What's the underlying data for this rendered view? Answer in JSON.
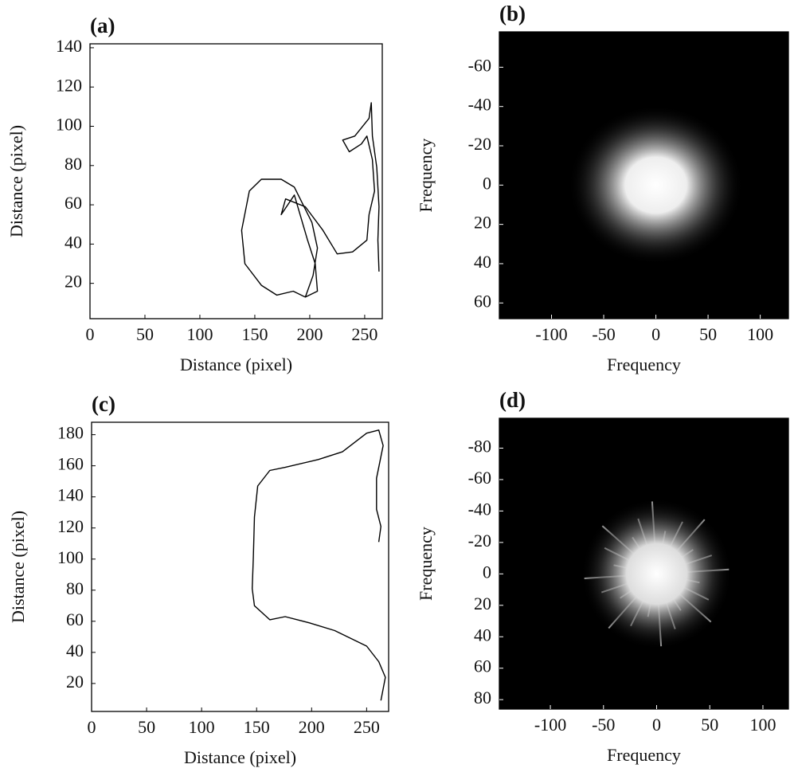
{
  "chart_data": [
    {
      "type": "line",
      "title": "(a)",
      "xlabel": "Distance (pixel)",
      "ylabel": "Distance (pixel)",
      "color": "#000000",
      "x": [
        196,
        203,
        207,
        202,
        186,
        174,
        156,
        145,
        138,
        141,
        156,
        170,
        185,
        196,
        207,
        205,
        198,
        186,
        174,
        178,
        196,
        212,
        225,
        239,
        252,
        254,
        259,
        257,
        252,
        247,
        236,
        230,
        241,
        254,
        256,
        257,
        261,
        263,
        262,
        263
      ],
      "values": [
        13,
        24,
        38,
        51,
        69,
        73,
        73,
        67,
        47,
        30,
        19,
        14,
        16,
        13,
        16,
        30,
        42,
        65,
        55,
        63,
        59,
        47,
        35,
        36,
        42,
        55,
        67,
        83,
        95,
        91,
        87,
        93,
        95,
        104,
        112,
        95,
        79,
        59,
        42,
        26
      ],
      "xlim": [
        0,
        266
      ],
      "ylim": [
        2,
        142
      ],
      "xticks": [
        0,
        50,
        100,
        150,
        200,
        250
      ],
      "yticks": [
        20,
        40,
        60,
        80,
        100,
        120,
        140
      ]
    },
    {
      "type": "spectrum",
      "title": "(b)",
      "xlabel": "Frequency",
      "ylabel": "Frequency",
      "xlim": [
        -150,
        127
      ],
      "ylim": [
        68,
        -78
      ],
      "xticks": [
        -100,
        -50,
        0,
        50,
        100
      ],
      "yticks": [
        -60,
        -40,
        -20,
        0,
        20,
        40,
        60
      ]
    },
    {
      "type": "line",
      "title": "(c)",
      "xlabel": "Distance (pixel)",
      "ylabel": "Distance (pixel)",
      "color": "#000000",
      "x": [
        263,
        267,
        261,
        250,
        221,
        198,
        176,
        162,
        148,
        146,
        147,
        148,
        151,
        162,
        176,
        206,
        228,
        250,
        261,
        265,
        259,
        259,
        263,
        261
      ],
      "values": [
        9,
        24,
        34,
        44,
        54,
        59,
        63,
        61,
        70,
        81,
        101,
        127,
        147,
        157,
        159,
        164,
        169,
        181,
        183,
        173,
        152,
        132,
        121,
        111
      ],
      "xlim": [
        0,
        270
      ],
      "ylim": [
        2,
        188
      ],
      "xticks": [
        0,
        50,
        100,
        150,
        200,
        250
      ],
      "yticks": [
        20,
        40,
        60,
        80,
        100,
        120,
        140,
        160,
        180
      ]
    },
    {
      "type": "spectrum",
      "title": "(d)",
      "xlabel": "Frequency",
      "ylabel": "Frequency",
      "xlim": [
        -148,
        124
      ],
      "ylim": [
        86,
        -99
      ],
      "xticks": [
        -100,
        -50,
        0,
        50,
        100
      ],
      "yticks": [
        -80,
        -60,
        -40,
        -20,
        0,
        20,
        40,
        60,
        80
      ]
    }
  ]
}
